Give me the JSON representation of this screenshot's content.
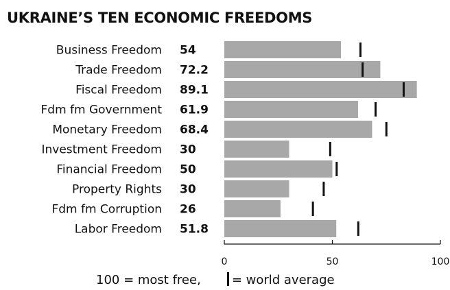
{
  "chart_data": {
    "type": "bar",
    "orientation": "horizontal",
    "title": "UKRAINE’S TEN ECONOMIC FREEDOMS",
    "categories": [
      "Business Freedom",
      "Trade Freedom",
      "Fiscal Freedom",
      "Fdm fm Government",
      "Monetary Freedom",
      "Investment Freedom",
      "Financial Freedom",
      "Property Rights",
      "Fdm fm Corruption",
      "Labor Freedom"
    ],
    "value_labels": [
      "54",
      "72.2",
      "89.1",
      "61.9",
      "68.4",
      "30",
      "50",
      "30",
      "26",
      "51.8"
    ],
    "values": [
      54,
      72.2,
      89.1,
      61.9,
      68.4,
      30,
      50,
      30,
      26,
      51.8
    ],
    "world_average": [
      63,
      64,
      83,
      70,
      75,
      49,
      52,
      46,
      41,
      62
    ],
    "xlim": [
      0,
      100
    ],
    "xticks": [
      0,
      50,
      100
    ],
    "grid": false,
    "legend": {
      "scale_text": "100 = most free,",
      "marker_text": "= world average"
    },
    "colors": {
      "bar": "#a8a8a8",
      "average_marker": "#111111",
      "text": "#111111"
    }
  }
}
